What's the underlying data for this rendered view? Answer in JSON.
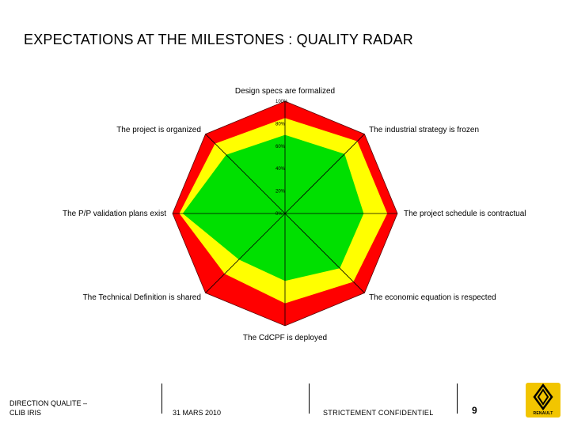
{
  "slide": {
    "title": "EXPECTATIONS AT THE MILESTONES : QUALITY RADAR"
  },
  "chart_data": {
    "type": "radar",
    "axes": [
      "Design specs are formalized",
      "The industrial strategy is frozen",
      "The project schedule is contractual",
      "The economic equation is respected",
      "The CdCPF is deployed",
      "The Technical Definition is shared",
      "The P/P validation plans exist",
      "The project is organized"
    ],
    "tick_labels": [
      "0%",
      "20%",
      "40%",
      "60%",
      "80%",
      "100%"
    ],
    "rmax": 100,
    "series": [
      {
        "color": "#ff0000",
        "values": [
          100,
          100,
          100,
          100,
          100,
          100,
          100,
          100
        ]
      },
      {
        "color": "#ffff00",
        "values": [
          85,
          91,
          91,
          86,
          80,
          76,
          94,
          88
        ]
      },
      {
        "color": "#00e000",
        "values": [
          70,
          75,
          70,
          69,
          60,
          58,
          91,
          74
        ]
      }
    ]
  },
  "footer": {
    "org_line1": "DIRECTION QUALITE –",
    "org_line2": "CLIB IRIS",
    "date": "31 MARS 2010",
    "confidential": "STRICTEMENT CONFIDENTIEL",
    "page": "9",
    "logo_text": "RENAULT"
  }
}
